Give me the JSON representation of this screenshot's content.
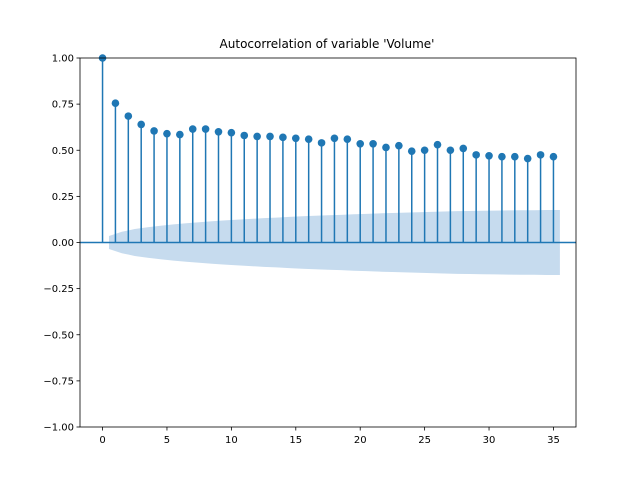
{
  "chart_data": {
    "type": "stem",
    "title": "Autocorrelation of variable 'Volume'",
    "xlabel": "",
    "ylabel": "",
    "xlim": [
      -1.75,
      36.75
    ],
    "ylim": [
      -1.0,
      1.0
    ],
    "xticks": [
      0,
      5,
      10,
      15,
      20,
      25,
      30,
      35
    ],
    "yticks": [
      -1.0,
      -0.75,
      -0.5,
      -0.25,
      0.0,
      0.25,
      0.5,
      0.75,
      1.0
    ],
    "xtick_labels": [
      "0",
      "5",
      "10",
      "15",
      "20",
      "25",
      "30",
      "35"
    ],
    "ytick_labels": [
      "−1.00",
      "−0.75",
      "−0.50",
      "−0.25",
      "0.00",
      "0.25",
      "0.50",
      "0.75",
      "1.00"
    ],
    "lags": [
      0,
      1,
      2,
      3,
      4,
      5,
      6,
      7,
      8,
      9,
      10,
      11,
      12,
      13,
      14,
      15,
      16,
      17,
      18,
      19,
      20,
      21,
      22,
      23,
      24,
      25,
      26,
      27,
      28,
      29,
      30,
      31,
      32,
      33,
      34,
      35
    ],
    "acf": [
      1.0,
      0.755,
      0.685,
      0.64,
      0.605,
      0.59,
      0.585,
      0.615,
      0.615,
      0.6,
      0.595,
      0.58,
      0.575,
      0.575,
      0.57,
      0.565,
      0.56,
      0.54,
      0.565,
      0.56,
      0.535,
      0.535,
      0.515,
      0.525,
      0.495,
      0.5,
      0.53,
      0.5,
      0.51,
      0.475,
      0.47,
      0.465,
      0.465,
      0.455,
      0.475,
      0.465
    ],
    "confidence_band": {
      "x_start": 0.5,
      "x_end": 35.5,
      "upper": [
        0.035,
        0.058,
        0.073,
        0.083,
        0.091,
        0.098,
        0.104,
        0.11,
        0.115,
        0.12,
        0.124,
        0.128,
        0.132,
        0.135,
        0.139,
        0.142,
        0.145,
        0.148,
        0.15,
        0.153,
        0.155,
        0.158,
        0.16,
        0.162,
        0.164,
        0.166,
        0.168,
        0.17,
        0.171,
        0.172,
        0.173,
        0.174,
        0.175,
        0.175,
        0.176,
        0.176
      ]
    },
    "colors": {
      "stem": "#1f77b4",
      "band": "#c6dbee",
      "axes": "#000000"
    },
    "grid": false,
    "legend": "none"
  }
}
